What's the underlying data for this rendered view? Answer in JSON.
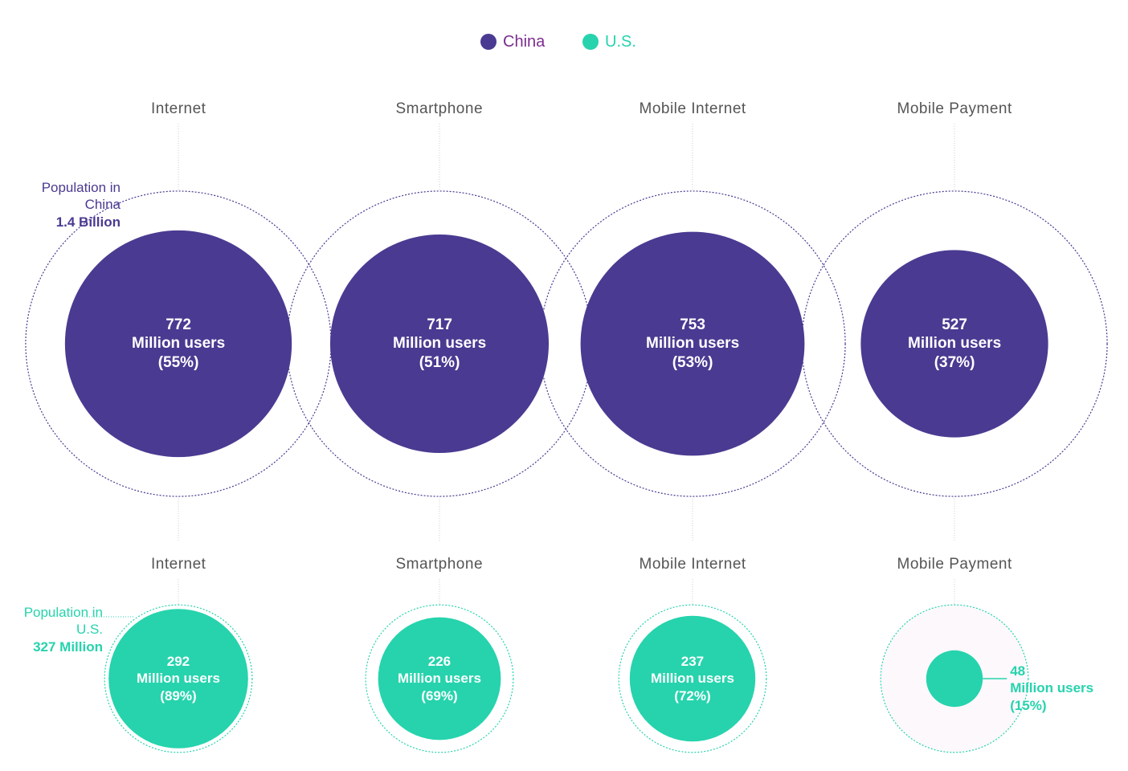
{
  "chart_data": {
    "type": "bubble",
    "categories": [
      "Internet",
      "Smartphone",
      "Mobile Internet",
      "Mobile Payment"
    ],
    "unit_label": "Million users",
    "series": [
      {
        "name": "China",
        "color": "#4b3a91",
        "text_color": "#7b2d8e",
        "values": [
          772,
          717,
          753,
          527
        ],
        "share_labels": [
          "(55%)",
          "(51%)",
          "(53%)",
          "(37%)"
        ],
        "population": {
          "value": 1400,
          "label": "1.4 Billion"
        },
        "population_caption": "Population in China"
      },
      {
        "name": "U.S.",
        "color": "#26d3ad",
        "text_color": "#26d3ad",
        "values": [
          292,
          226,
          237,
          48
        ],
        "share_labels": [
          "(89%)",
          "(69%)",
          "(72%)",
          "(15%)"
        ],
        "population": {
          "value": 327,
          "label": "327 Million"
        },
        "population_caption": "Population in U.S."
      }
    ]
  }
}
